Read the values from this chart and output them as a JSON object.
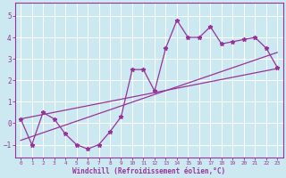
{
  "xlabel": "Windchill (Refroidissement éolien,°C)",
  "bg_color": "#cce8f0",
  "grid_color": "#ffffff",
  "line_color": "#993399",
  "x_ticks": [
    0,
    1,
    2,
    3,
    4,
    5,
    6,
    7,
    8,
    9,
    10,
    11,
    12,
    13,
    14,
    15,
    16,
    17,
    18,
    19,
    20,
    21,
    22,
    23
  ],
  "y_ticks": [
    -1,
    0,
    1,
    2,
    3,
    4,
    5
  ],
  "ylim": [
    -1.6,
    5.6
  ],
  "xlim": [
    -0.5,
    23.5
  ],
  "line1_x": [
    0,
    1,
    2,
    3,
    4,
    5,
    6,
    7,
    8,
    9,
    10,
    11,
    12,
    13,
    14,
    15,
    16,
    17,
    18,
    19,
    20,
    21,
    22,
    23
  ],
  "line1_y": [
    0.2,
    -1.0,
    0.5,
    0.2,
    -0.5,
    -1.0,
    -1.2,
    -1.0,
    -0.4,
    0.3,
    2.5,
    2.5,
    1.5,
    3.5,
    4.8,
    4.0,
    4.0,
    4.5,
    3.7,
    3.8,
    3.9,
    4.0,
    3.5,
    2.6
  ],
  "line2_x": [
    0,
    23
  ],
  "line2_y": [
    0.2,
    2.55
  ],
  "line3_x": [
    0,
    23
  ],
  "line3_y": [
    -0.8,
    3.3
  ]
}
